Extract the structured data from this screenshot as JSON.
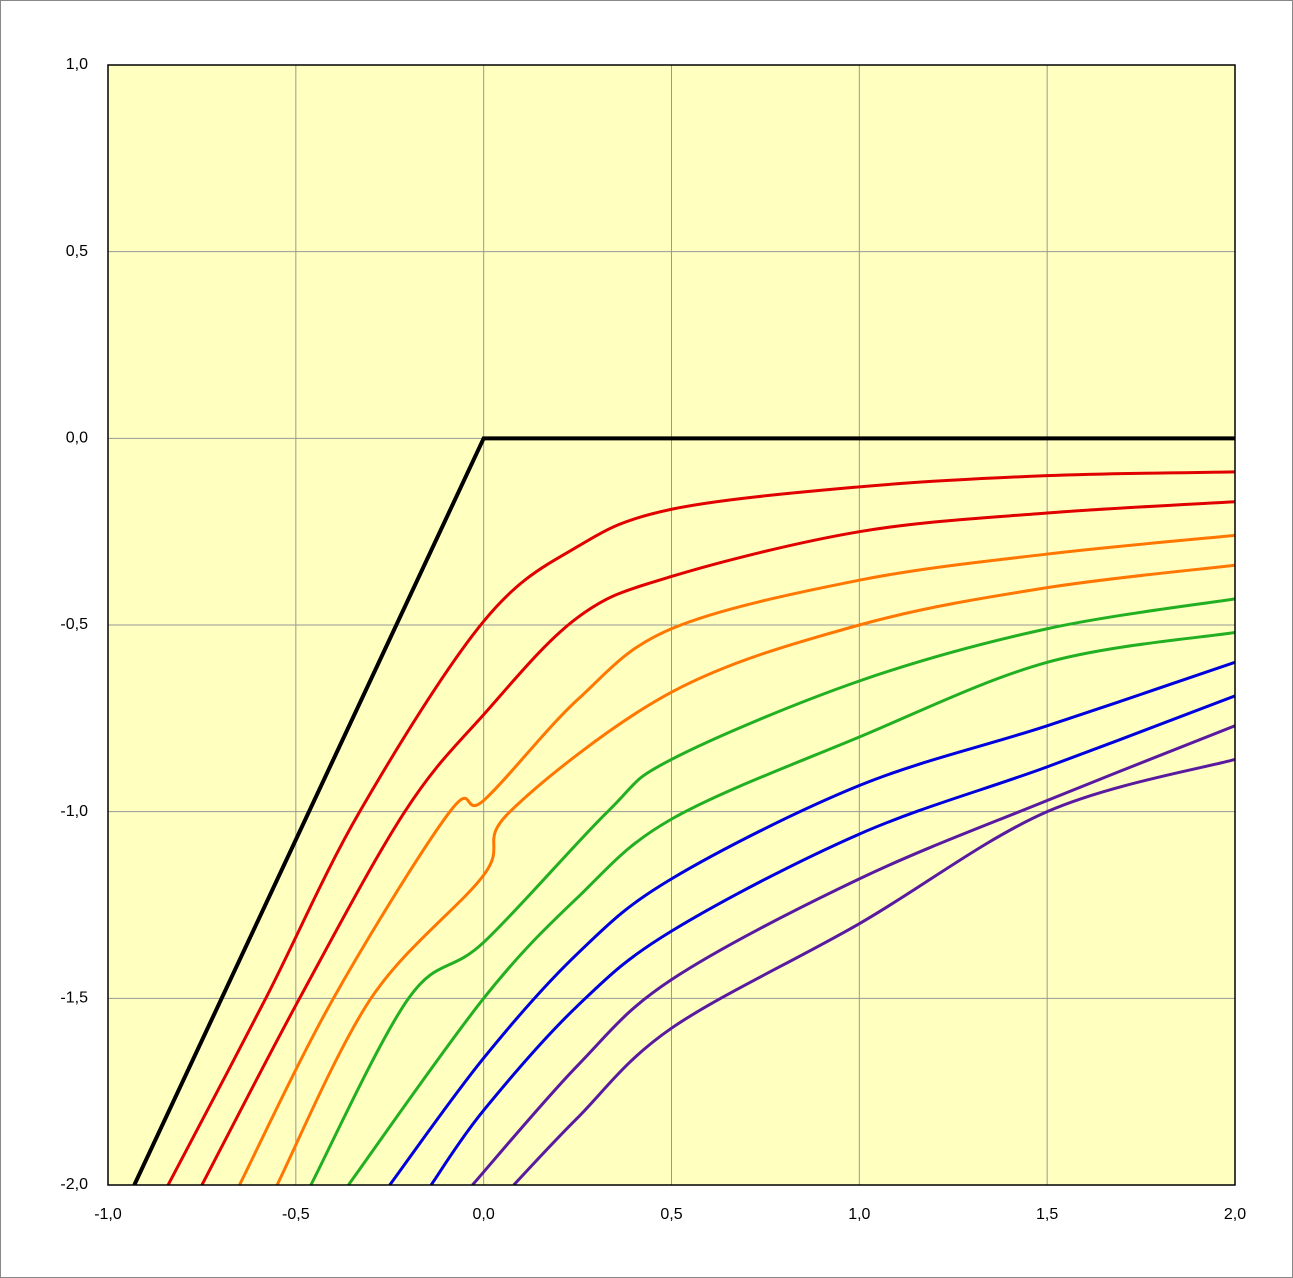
{
  "chart_data": {
    "type": "line",
    "xlim": [
      -1,
      2
    ],
    "ylim": [
      -2,
      1
    ],
    "xticks": [
      {
        "value": -1,
        "label": "-1,0"
      },
      {
        "value": -0.5,
        "label": "-0,5"
      },
      {
        "value": 0,
        "label": "0,0"
      },
      {
        "value": 0.5,
        "label": "0,5"
      },
      {
        "value": 1,
        "label": "1,0"
      },
      {
        "value": 1.5,
        "label": "1,5"
      },
      {
        "value": 2,
        "label": "2,0"
      }
    ],
    "yticks": [
      {
        "value": -2,
        "label": "-2,0"
      },
      {
        "value": -1.5,
        "label": "-1,5"
      },
      {
        "value": -1,
        "label": "-1,0"
      },
      {
        "value": -0.5,
        "label": "-0,5"
      },
      {
        "value": 0,
        "label": "0,0"
      },
      {
        "value": 0.5,
        "label": "0,5"
      },
      {
        "value": 1,
        "label": "1,0"
      }
    ],
    "grid": true,
    "background": "#ffffc0",
    "series": [
      {
        "color": "#000000",
        "x": [
          -0.93,
          0,
          2
        ],
        "values": [
          -2,
          0,
          0
        ]
      },
      {
        "color": "#e00000",
        "x": [
          -0.84,
          -0.58,
          -0.33,
          0,
          0.25,
          0.5,
          1,
          1.5,
          2
        ],
        "values": [
          -2,
          -1.5,
          -1,
          -0.49,
          -0.29,
          -0.19,
          -0.13,
          -0.1,
          -0.09
        ]
      },
      {
        "color": "#e00000",
        "x": [
          -0.75,
          -0.49,
          -0.21,
          0,
          0.25,
          0.5,
          1,
          1.5,
          2
        ],
        "values": [
          -2,
          -1.5,
          -1,
          -0.74,
          -0.48,
          -0.37,
          -0.25,
          -0.2,
          -0.17
        ]
      },
      {
        "color": "#ff7700",
        "x": [
          -0.65,
          -0.4,
          -0.09,
          0,
          0.25,
          0.5,
          1,
          1.5,
          2
        ],
        "values": [
          -2,
          -1.5,
          -1,
          -0.97,
          -0.7,
          -0.51,
          -0.38,
          -0.31,
          -0.26
        ]
      },
      {
        "color": "#ff7700",
        "x": [
          -0.55,
          -0.3,
          0,
          0.07,
          0.5,
          1,
          1.5,
          2
        ],
        "values": [
          -2,
          -1.5,
          -1.17,
          -1,
          -0.68,
          -0.5,
          -0.4,
          -0.34
        ]
      },
      {
        "color": "#22b022",
        "x": [
          -0.46,
          -0.2,
          0,
          0.33,
          0.5,
          1,
          1.5,
          2
        ],
        "values": [
          -2,
          -1.5,
          -1.35,
          -1,
          -0.86,
          -0.65,
          -0.51,
          -0.43
        ]
      },
      {
        "color": "#22b022",
        "x": [
          -0.36,
          0,
          0.25,
          0.5,
          1,
          1.5,
          2
        ],
        "values": [
          -2,
          -1.5,
          -1.23,
          -1.02,
          -0.8,
          -0.6,
          -0.52
        ]
      },
      {
        "color": "#0000dd",
        "x": [
          -0.25,
          0,
          0.25,
          0.5,
          1,
          1.5,
          2
        ],
        "values": [
          -2,
          -1.66,
          -1.38,
          -1.18,
          -0.93,
          -0.77,
          -0.6
        ]
      },
      {
        "color": "#0000dd",
        "x": [
          -0.14,
          0,
          0.25,
          0.5,
          1,
          1.5,
          2
        ],
        "values": [
          -2,
          -1.8,
          -1.52,
          -1.32,
          -1.06,
          -0.88,
          -0.69
        ]
      },
      {
        "color": "#5a1aa0",
        "x": [
          -0.03,
          0.25,
          0.5,
          1,
          1.5,
          2
        ],
        "values": [
          -2,
          -1.68,
          -1.45,
          -1.18,
          -0.97,
          -0.77
        ]
      },
      {
        "color": "#5a1aa0",
        "x": [
          0.08,
          0.25,
          0.5,
          1,
          1.5,
          2
        ],
        "values": [
          -2,
          -1.82,
          -1.58,
          -1.3,
          -1.0,
          -0.86
        ]
      }
    ]
  }
}
